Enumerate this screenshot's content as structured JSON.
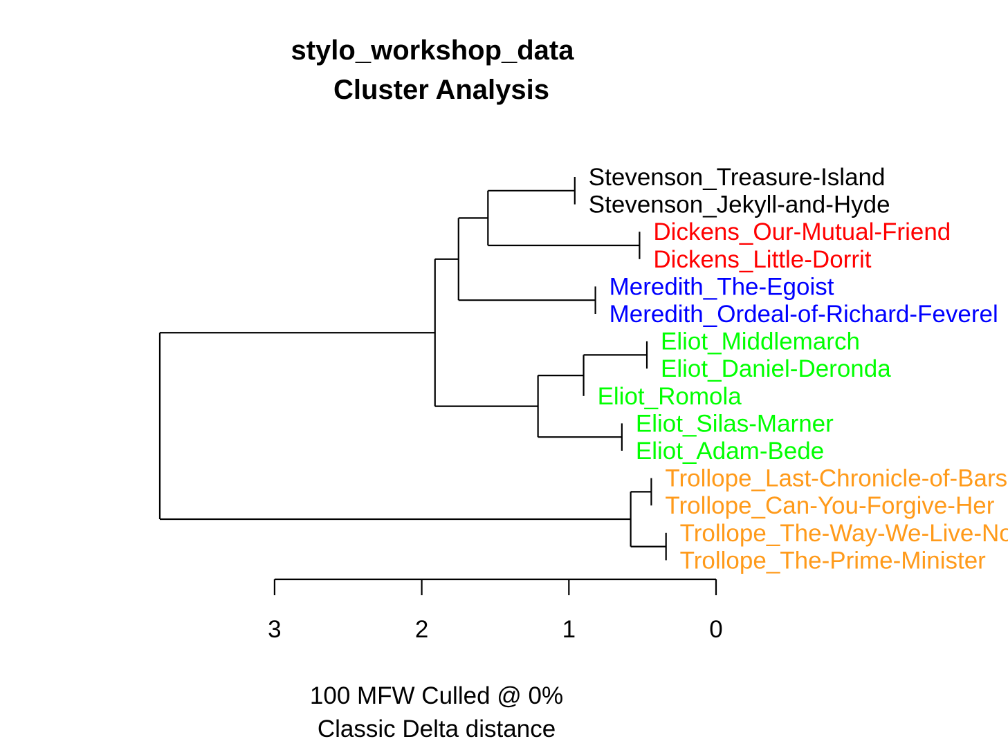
{
  "title": {
    "line1": "stylo_workshop_data",
    "line2": "Cluster Analysis"
  },
  "subtitle": {
    "line1": "100 MFW  Culled @ 0%",
    "line2": "Classic Delta distance"
  },
  "axis": {
    "ticks": [
      3,
      2,
      1,
      0
    ],
    "tick_labels": [
      "3",
      "2",
      "1",
      "0"
    ]
  },
  "colors": {
    "Stevenson": "#000000",
    "Dickens": "#ff0000",
    "Meredith": "#0000ff",
    "Eliot": "#00ff00",
    "Trollope": "#ff9a1a"
  },
  "leaves": [
    {
      "label": "Stevenson_Treasure-Island",
      "group": "Stevenson"
    },
    {
      "label": "Stevenson_Jekyll-and-Hyde",
      "group": "Stevenson"
    },
    {
      "label": "Dickens_Our-Mutual-Friend",
      "group": "Dickens"
    },
    {
      "label": "Dickens_Little-Dorrit",
      "group": "Dickens"
    },
    {
      "label": "Meredith_The-Egoist",
      "group": "Meredith"
    },
    {
      "label": "Meredith_Ordeal-of-Richard-Feverel",
      "group": "Meredith"
    },
    {
      "label": "Eliot_Middlemarch",
      "group": "Eliot"
    },
    {
      "label": "Eliot_Daniel-Deronda",
      "group": "Eliot"
    },
    {
      "label": "Eliot_Romola",
      "group": "Eliot"
    },
    {
      "label": "Eliot_Silas-Marner",
      "group": "Eliot"
    },
    {
      "label": "Eliot_Adam-Bede",
      "group": "Eliot"
    },
    {
      "label": "Trollope_Last-Chronicle-of-Barset",
      "group": "Trollope"
    },
    {
      "label": "Trollope_Can-You-Forgive-Her",
      "group": "Trollope"
    },
    {
      "label": "Trollope_The-Way-We-Live-Now",
      "group": "Trollope"
    },
    {
      "label": "Trollope_The-Prime-Minister",
      "group": "Trollope"
    }
  ],
  "merges": [
    {
      "id": "m1",
      "children": [
        "L0",
        "L1"
      ],
      "height": 0.96
    },
    {
      "id": "m2",
      "children": [
        "L2",
        "L3"
      ],
      "height": 0.52
    },
    {
      "id": "m3",
      "children": [
        "m1",
        "m2"
      ],
      "height": 1.55
    },
    {
      "id": "m4",
      "children": [
        "L4",
        "L5"
      ],
      "height": 0.82
    },
    {
      "id": "m5",
      "children": [
        "m3",
        "m4"
      ],
      "height": 1.75
    },
    {
      "id": "m6",
      "children": [
        "L6",
        "L7"
      ],
      "height": 0.47
    },
    {
      "id": "m7",
      "children": [
        "m6",
        "L8"
      ],
      "height": 0.9
    },
    {
      "id": "m8",
      "children": [
        "L9",
        "L10"
      ],
      "height": 0.64
    },
    {
      "id": "m9",
      "children": [
        "m7",
        "m8"
      ],
      "height": 1.21
    },
    {
      "id": "m10",
      "children": [
        "m5",
        "m9"
      ],
      "height": 1.91
    },
    {
      "id": "m11",
      "children": [
        "L11",
        "L12"
      ],
      "height": 0.44
    },
    {
      "id": "m12",
      "children": [
        "L13",
        "L14"
      ],
      "height": 0.34
    },
    {
      "id": "m13",
      "children": [
        "m11",
        "m12"
      ],
      "height": 0.58
    },
    {
      "id": "m14",
      "children": [
        "m10",
        "m13"
      ],
      "height": 3.78
    }
  ]
}
